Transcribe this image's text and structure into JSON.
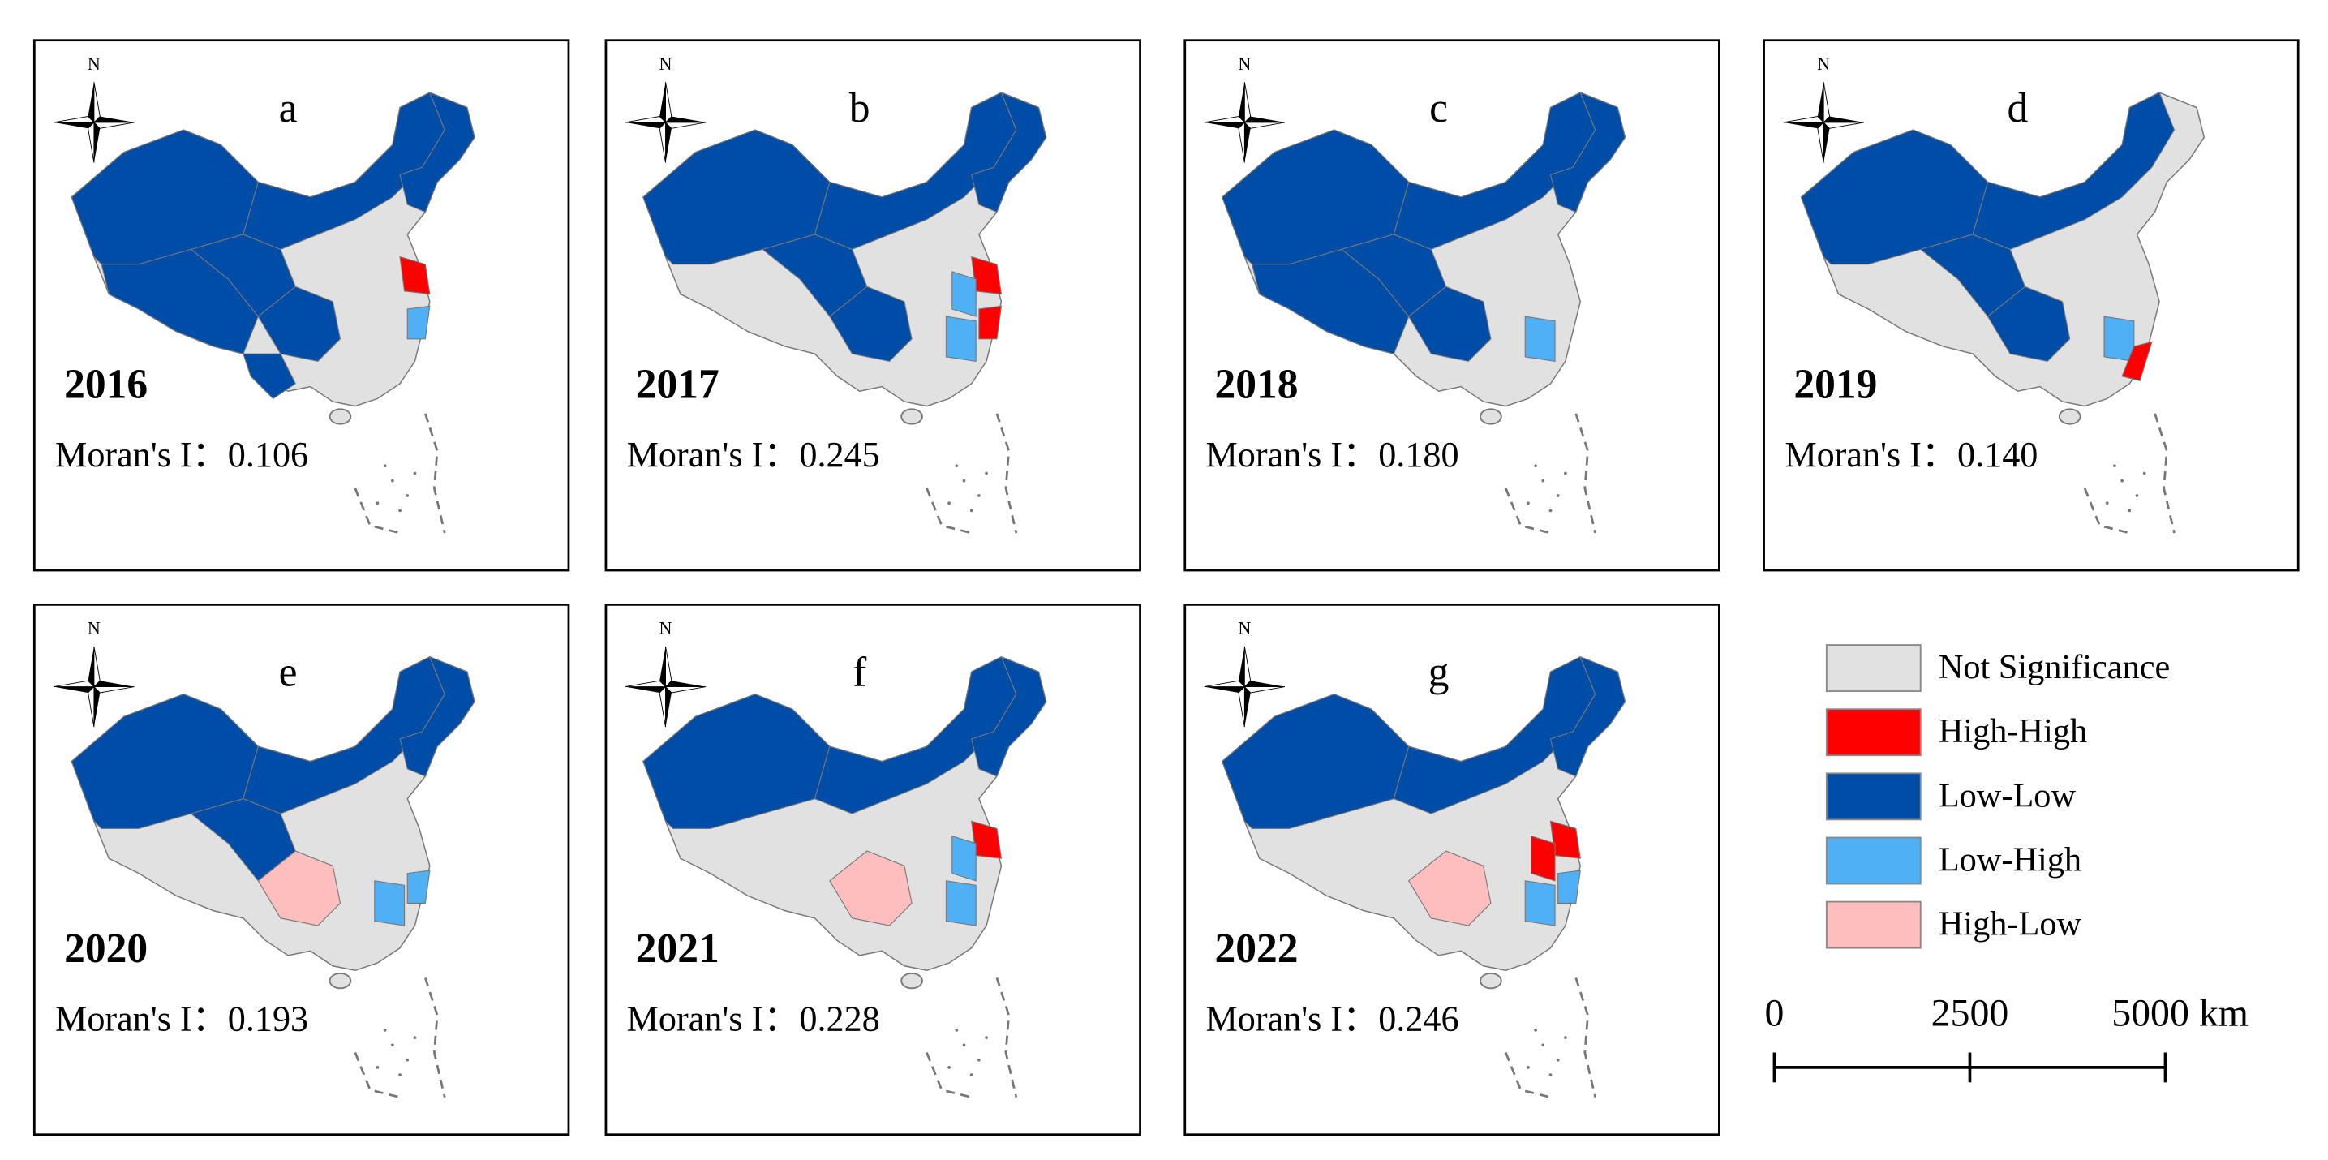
{
  "panels": [
    {
      "letter": "a",
      "year": "2016",
      "moran_label": "Moran's I：",
      "moran_value": "0.106"
    },
    {
      "letter": "b",
      "year": "2017",
      "moran_label": "Moran's I：",
      "moran_value": "0.245"
    },
    {
      "letter": "c",
      "year": "2018",
      "moran_label": "Moran's I：",
      "moran_value": "0.180"
    },
    {
      "letter": "d",
      "year": "2019",
      "moran_label": "Moran's I：",
      "moran_value": "0.140"
    },
    {
      "letter": "e",
      "year": "2020",
      "moran_label": "Moran's I：",
      "moran_value": "0.193"
    },
    {
      "letter": "f",
      "year": "2021",
      "moran_label": "Moran's I：",
      "moran_value": "0.228"
    },
    {
      "letter": "g",
      "year": "2022",
      "moran_label": "Moran's I：",
      "moran_value": "0.246"
    }
  ],
  "compass": "N",
  "legend": [
    {
      "name": "Not Significance",
      "color": "#e1e1e1"
    },
    {
      "name": "High-High",
      "color": "#ff0000"
    },
    {
      "name": "Low-Low",
      "color": "#004da8"
    },
    {
      "name": "Low-High",
      "color": "#4fb0f5"
    },
    {
      "name": "High-Low",
      "color": "#ffbebe"
    }
  ],
  "scale_bar": {
    "ticks": [
      {
        "value": 0,
        "label": "0"
      },
      {
        "value": 2500,
        "label": "2500"
      },
      {
        "value": 5000,
        "label": "5000 km"
      }
    ]
  }
}
